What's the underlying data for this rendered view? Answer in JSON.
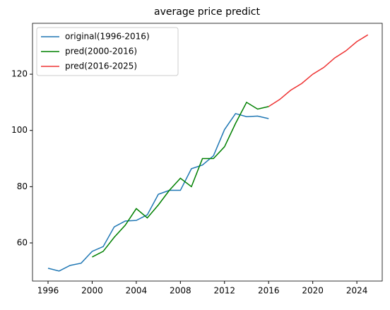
{
  "chart_data": {
    "type": "line",
    "title": "average price predict",
    "x": [
      1996,
      1997,
      1998,
      1999,
      2000,
      2001,
      2002,
      2003,
      2004,
      2005,
      2006,
      2007,
      2008,
      2009,
      2010,
      2011,
      2012,
      2013,
      2014,
      2015,
      2016,
      2017,
      2018,
      2019,
      2020,
      2021,
      2022,
      2023,
      2024,
      2025
    ],
    "series": [
      {
        "name": "original(1996-2016)",
        "color": "#1f77b4",
        "values": [
          51,
          50,
          52,
          52.8,
          57,
          58.7,
          65.7,
          67.8,
          68,
          70,
          77.3,
          78.7,
          78.7,
          86.4,
          87.7,
          91,
          100.3,
          106,
          104.9,
          105.1,
          104.2,
          null,
          null,
          null,
          null,
          null,
          null,
          null,
          null,
          null
        ]
      },
      {
        "name": "pred(2000-2016)",
        "color": "#008000",
        "values": [
          null,
          null,
          null,
          null,
          55,
          57,
          62,
          66.3,
          72.2,
          68.9,
          73.5,
          78.7,
          83,
          80,
          90,
          90,
          94.2,
          102.5,
          110,
          107.6,
          108.5,
          null,
          null,
          null,
          null,
          null,
          null,
          null,
          null,
          null
        ]
      },
      {
        "name": "pred(2016-2025)",
        "color": "#ee3333",
        "values": [
          null,
          null,
          null,
          null,
          null,
          null,
          null,
          null,
          null,
          null,
          null,
          null,
          null,
          null,
          null,
          null,
          null,
          null,
          null,
          null,
          108.5,
          111,
          114.3,
          116.7,
          120,
          122.4,
          125.8,
          128.3,
          131.6,
          134
        ]
      }
    ],
    "xlim": [
      1994.59,
      2026.3
    ],
    "ylim": [
      46.44,
      138.1
    ],
    "xticks": [
      1996,
      2000,
      2004,
      2008,
      2012,
      2016,
      2020,
      2024
    ],
    "yticks": [
      60,
      80,
      100,
      120
    ],
    "legend": "upper left"
  }
}
